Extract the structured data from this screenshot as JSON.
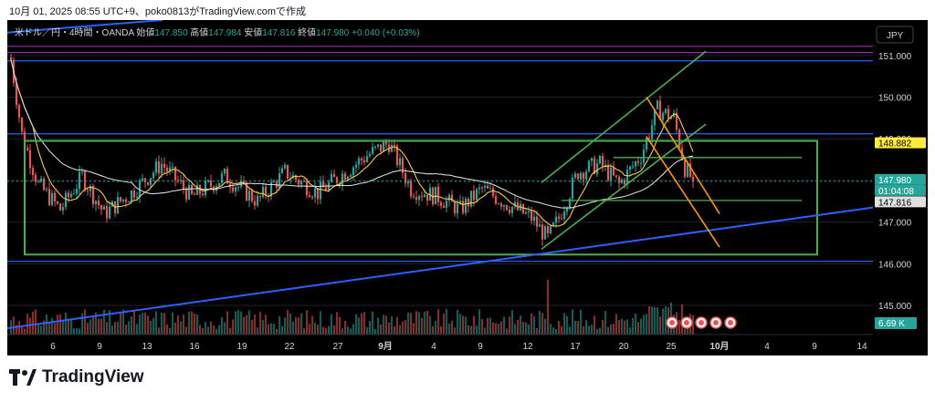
{
  "caption": "10月 01, 2025 08:55 UTC+9、poko0813がTradingView.comで作成",
  "brand": {
    "name": "TradingView"
  },
  "chart_data": {
    "type": "candlestick",
    "symbol": "米ドル／円・4時間・OANDA",
    "ohlc": {
      "open_label": "始値",
      "open": "147.850",
      "high_label": "高値",
      "high": "147.984",
      "low_label": "安値",
      "low": "147.816",
      "close_label": "終値",
      "close": "147.980",
      "change": "+0.040 (+0.03%)"
    },
    "currency_button": "JPY",
    "y_ticks": [
      "151.000",
      "150.000",
      "149.000",
      "148.000",
      "147.000",
      "146.000",
      "145.000"
    ],
    "y_tick_values": [
      151,
      150,
      149,
      148,
      147,
      146,
      145
    ],
    "ylim": [
      144.3,
      151.85
    ],
    "x_ticks": [
      "6",
      "9",
      "13",
      "16",
      "19",
      "22",
      "27",
      "9月",
      "4",
      "9",
      "12",
      "17",
      "20",
      "25",
      "10月",
      "4",
      "9",
      "14"
    ],
    "price_badges": [
      {
        "value": "148.882",
        "color": "#ffeb3b",
        "text_color": "#000000"
      },
      {
        "value": "147.980",
        "color": "#26a69a",
        "text_color": "#ffffff"
      },
      {
        "value": "01:04:08",
        "color": "#26a69a",
        "text_color": "#ffffff"
      },
      {
        "value": "147.816",
        "color": "#e0e0e0",
        "text_color": "#000000"
      }
    ],
    "volume_badge": "6.69 K",
    "horizontal_lines": [
      {
        "y": 151.22,
        "color": "#9c27b0"
      },
      {
        "y": 151.07,
        "color": "#9c27b0"
      },
      {
        "y": 150.87,
        "color": "#2962ff"
      },
      {
        "y": 149.12,
        "color": "#2962ff"
      },
      {
        "y": 146.06,
        "color": "#2962ff"
      }
    ],
    "range_box": {
      "top": 148.95,
      "bottom": 146.22,
      "color": "#4caf50"
    },
    "green_levels": [
      {
        "y": 148.55,
        "start": 0.7
      },
      {
        "y": 147.52,
        "start": 0.64
      }
    ],
    "colors": {
      "up": "#26a69a",
      "down": "#ef5350",
      "ma_short": "#f9c846",
      "ma_long": "#d8d8d8",
      "trend": "#2962ff",
      "channel_up": "#4caf50",
      "channel_down": "#ff9800"
    }
  }
}
